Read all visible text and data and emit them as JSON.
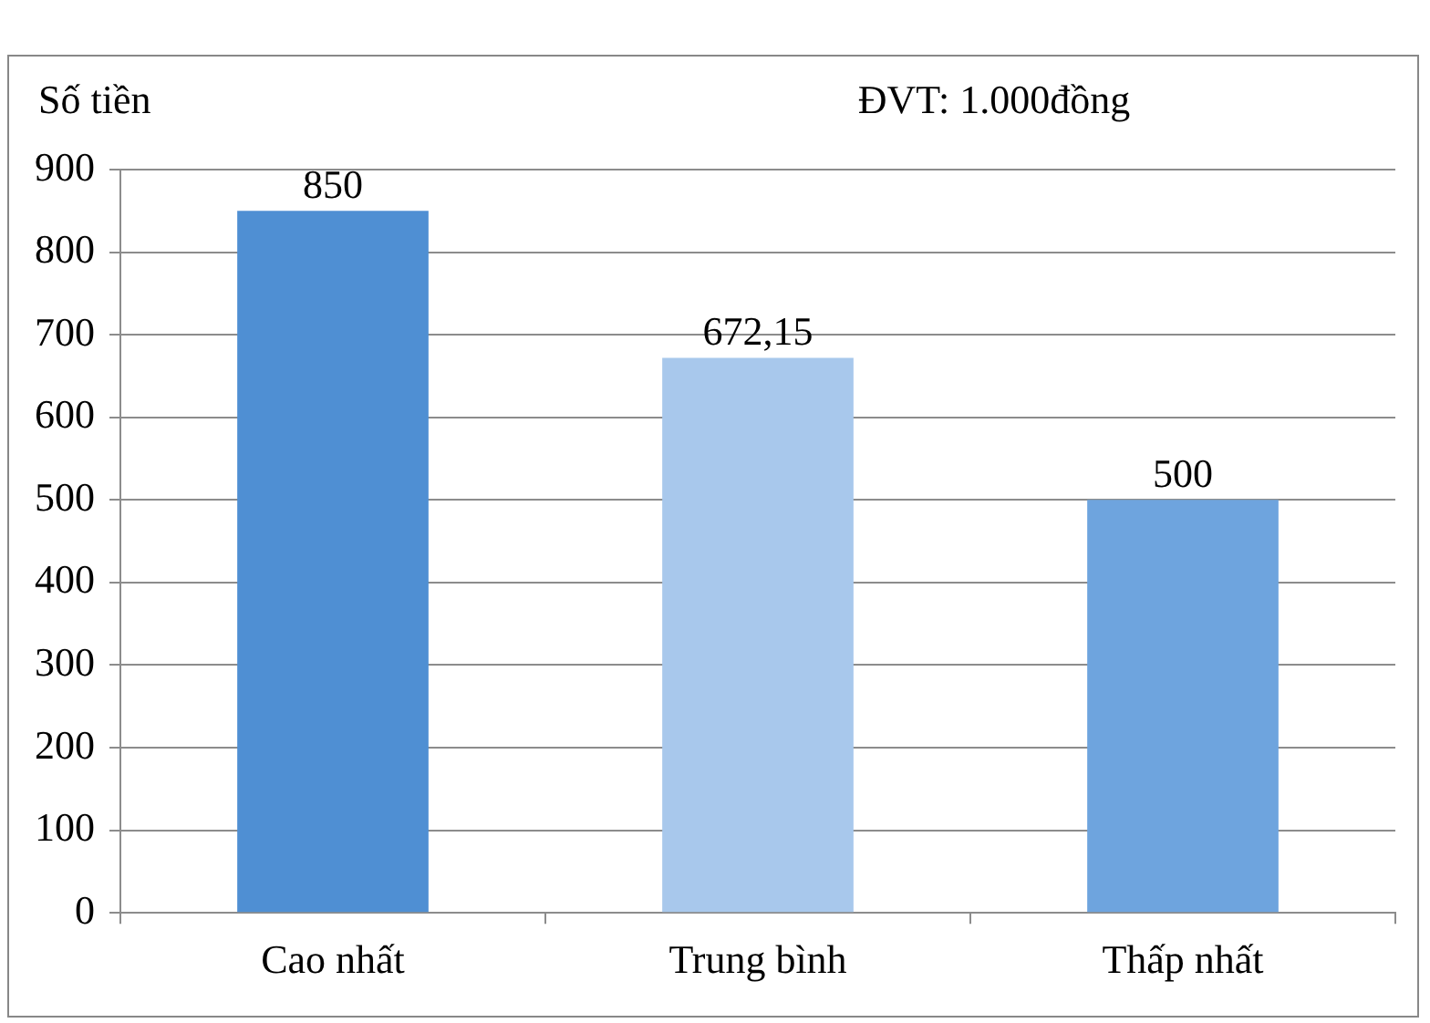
{
  "chart_data": {
    "type": "bar",
    "ylabel": "Số tiền",
    "annotations": [
      "ĐVT: 1.000đồng"
    ],
    "categories": [
      "Cao nhất",
      "Trung bình",
      "Thấp nhất"
    ],
    "values": [
      850,
      672.15,
      500
    ],
    "value_labels": [
      "850",
      "672,15",
      "500"
    ],
    "colors": [
      "#4f8fd3",
      "#a8c8ec",
      "#6ea4de"
    ],
    "ylim": [
      0,
      900
    ],
    "yticks": [
      0,
      100,
      200,
      300,
      400,
      500,
      600,
      700,
      800,
      900
    ],
    "grid": "y",
    "legend": false
  }
}
